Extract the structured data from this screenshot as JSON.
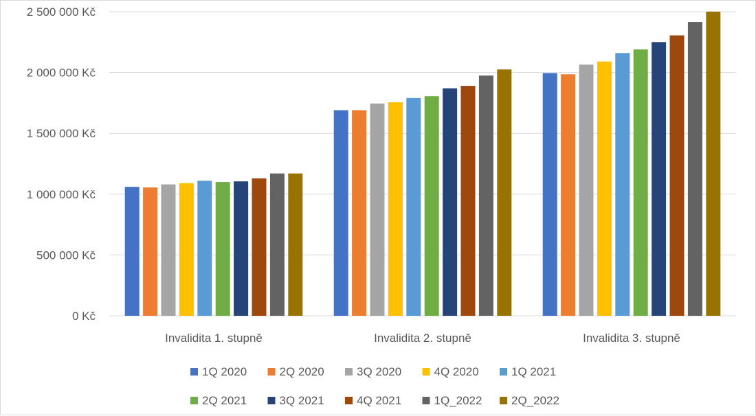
{
  "chart_data": {
    "type": "bar",
    "title": "",
    "xlabel": "",
    "ylabel": "",
    "ylim": [
      0,
      2500000
    ],
    "yticks": [
      0,
      500000,
      1000000,
      1500000,
      2000000,
      2500000
    ],
    "ytick_labels": [
      "0 Kč",
      "500 000 Kč",
      "1 000 000 Kč",
      "1 500 000 Kč",
      "2 000 000 Kč",
      "2 500 000 Kč"
    ],
    "grid": true,
    "legend_position": "bottom",
    "categories": [
      "Invalidita 1. stupně",
      "Invalidita 2. stupně",
      "Invalidita 3. stupně"
    ],
    "series": [
      {
        "name": "1Q 2020",
        "color": "#4472c4",
        "values": [
          1060000,
          1690000,
          1995000
        ]
      },
      {
        "name": "2Q 2020",
        "color": "#ed7d31",
        "values": [
          1055000,
          1690000,
          1985000
        ]
      },
      {
        "name": "3Q 2020",
        "color": "#a5a5a5",
        "values": [
          1080000,
          1745000,
          2065000
        ]
      },
      {
        "name": "4Q 2020",
        "color": "#ffc000",
        "values": [
          1090000,
          1755000,
          2090000
        ]
      },
      {
        "name": "1Q 2021",
        "color": "#5b9bd5",
        "values": [
          1110000,
          1790000,
          2160000
        ]
      },
      {
        "name": "2Q 2021",
        "color": "#70ad47",
        "values": [
          1100000,
          1805000,
          2190000
        ]
      },
      {
        "name": "3Q 2021",
        "color": "#264478",
        "values": [
          1105000,
          1870000,
          2250000
        ]
      },
      {
        "name": "4Q 2021",
        "color": "#9e480e",
        "values": [
          1130000,
          1890000,
          2305000
        ]
      },
      {
        "name": "1Q_2022",
        "color": "#636363",
        "values": [
          1170000,
          1975000,
          2415000
        ]
      },
      {
        "name": "2Q_2022",
        "color": "#997300",
        "values": [
          1170000,
          2025000,
          2500000
        ]
      }
    ]
  }
}
